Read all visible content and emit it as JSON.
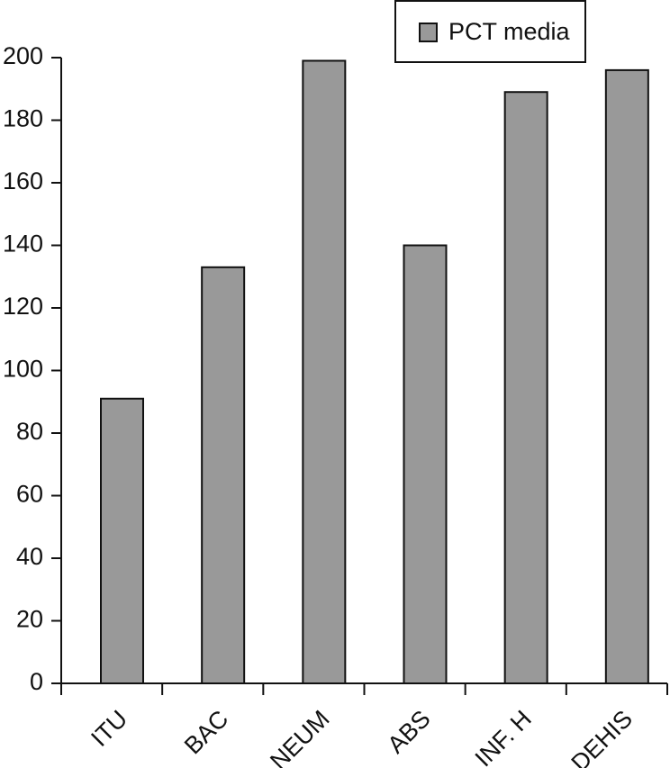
{
  "chart_data": {
    "type": "bar",
    "categories": [
      "ITU",
      "BAC",
      "NEUM",
      "ABS",
      "INF. H",
      "DEHIS"
    ],
    "series": [
      {
        "name": "PCT media",
        "color": "#999999",
        "values": [
          91,
          133,
          199,
          140,
          189,
          196
        ]
      }
    ],
    "ylim": [
      0,
      200
    ],
    "yticks": [
      0,
      20,
      40,
      60,
      80,
      100,
      120,
      140,
      160,
      180,
      200
    ],
    "legend": "top-right"
  }
}
